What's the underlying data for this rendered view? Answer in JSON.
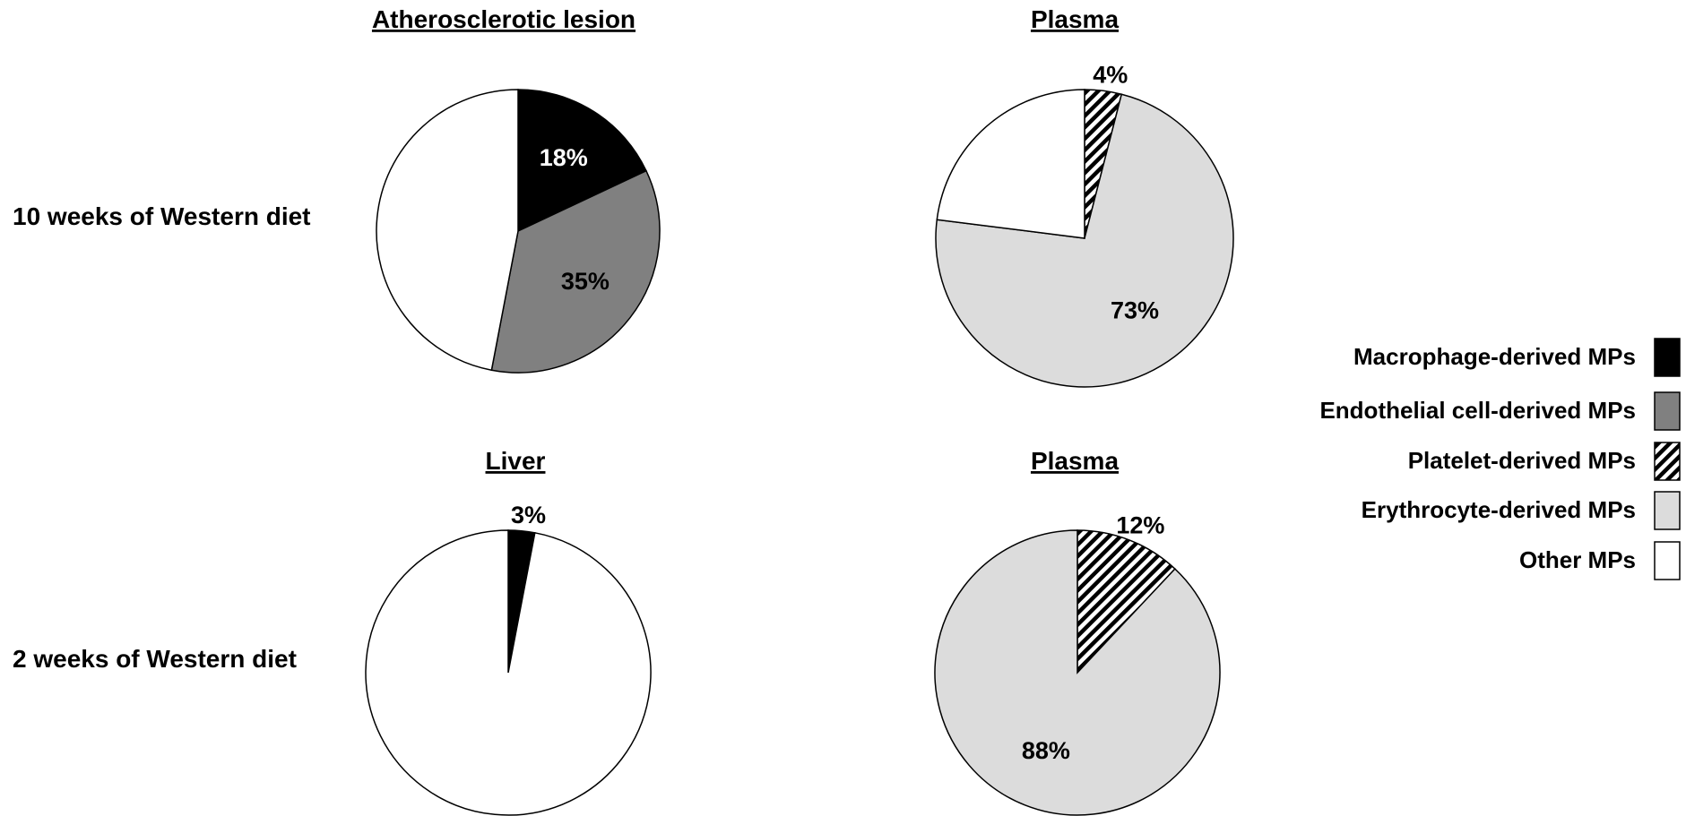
{
  "chart_data": [
    {
      "type": "pie",
      "title": "Atherosclerotic lesion",
      "row_label": "10 weeks of Western diet",
      "slices": [
        {
          "name": "Macrophage-derived MPs",
          "value": 18,
          "label": "18%",
          "color": "#000000",
          "label_color": "#ffffff"
        },
        {
          "name": "Endothelial cell-derived MPs",
          "value": 35,
          "label": "35%",
          "color": "#808080",
          "label_color": "#000000"
        },
        {
          "name": "Other MPs",
          "value": 47,
          "label": "",
          "color": "#ffffff",
          "label_color": "#000000"
        }
      ]
    },
    {
      "type": "pie",
      "title": "Plasma",
      "slices": [
        {
          "name": "Platelet-derived MPs",
          "value": 4,
          "label": "4%",
          "color": "hatch",
          "label_color": "#000000",
          "label_outside": true
        },
        {
          "name": "Erythrocyte-derived MPs",
          "value": 73,
          "label": "73%",
          "color": "#dcdcdc",
          "label_color": "#000000"
        },
        {
          "name": "Other MPs",
          "value": 23,
          "label": "",
          "color": "#ffffff",
          "label_color": "#000000"
        }
      ]
    },
    {
      "type": "pie",
      "title": "Liver",
      "row_label": "2 weeks of Western diet",
      "slices": [
        {
          "name": "Macrophage-derived MPs",
          "value": 3,
          "label": "3%",
          "color": "#000000",
          "label_color": "#000000",
          "label_outside": true
        },
        {
          "name": "Other MPs",
          "value": 97,
          "label": "",
          "color": "#ffffff",
          "label_color": "#000000"
        }
      ]
    },
    {
      "type": "pie",
      "title": "Plasma",
      "slices": [
        {
          "name": "Platelet-derived MPs",
          "value": 12,
          "label": "12%",
          "color": "hatch",
          "label_color": "#000000",
          "label_outside": true
        },
        {
          "name": "Erythrocyte-derived MPs",
          "value": 88,
          "label": "88%",
          "color": "#dcdcdc",
          "label_color": "#000000"
        }
      ]
    }
  ],
  "legend": {
    "placement": "right",
    "items": [
      {
        "label": "Macrophage-derived MPs",
        "color": "#000000"
      },
      {
        "label": "Endothelial cell-derived MPs",
        "color": "#808080"
      },
      {
        "label": "Platelet-derived MPs",
        "color": "hatch"
      },
      {
        "label": "Erythrocyte-derived MPs",
        "color": "#dcdcdc"
      },
      {
        "label": "Other MPs",
        "color": "#ffffff"
      }
    ]
  }
}
